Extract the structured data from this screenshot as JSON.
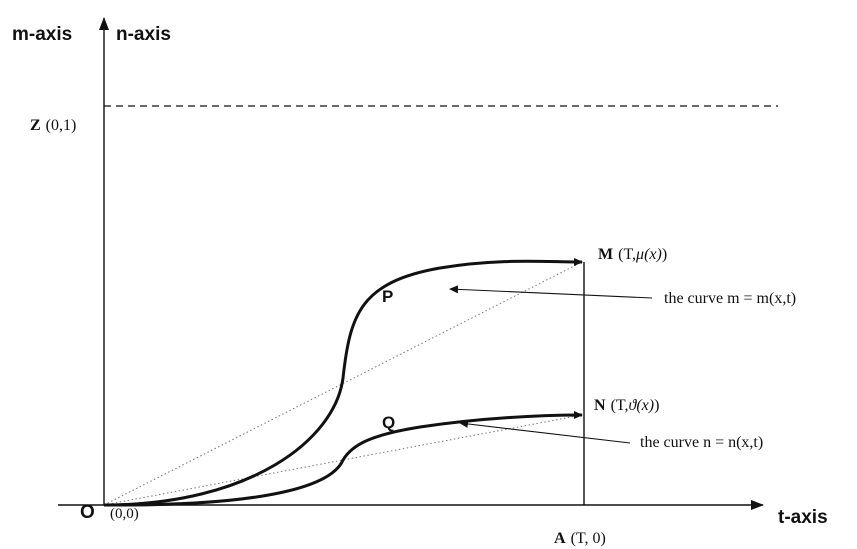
{
  "axes": {
    "vertical_label_m": "m-axis",
    "vertical_label_n": "n-axis",
    "horizontal_label": "t-axis"
  },
  "points": {
    "origin": {
      "letter": "O",
      "coords": "(0,0)"
    },
    "z": {
      "letter": "Z",
      "coords": "(0,1)"
    },
    "a": {
      "letter": "A",
      "coords": "(T, 0)"
    },
    "m": {
      "letter": "M",
      "coords_open": "(T,",
      "coords_func": "μ(x)",
      "coords_close": ")"
    },
    "n": {
      "letter": "N",
      "coords_open": "(T,",
      "coords_func": "ϑ(x)",
      "coords_close": ")"
    },
    "p": {
      "letter": "P"
    },
    "q": {
      "letter": "Q"
    }
  },
  "annotations": {
    "curve_m": "the curve m = m(x,t)",
    "curve_n": "the curve n = n(x,t)"
  },
  "colors": {
    "line": "#111111",
    "dotted": "#777777"
  }
}
